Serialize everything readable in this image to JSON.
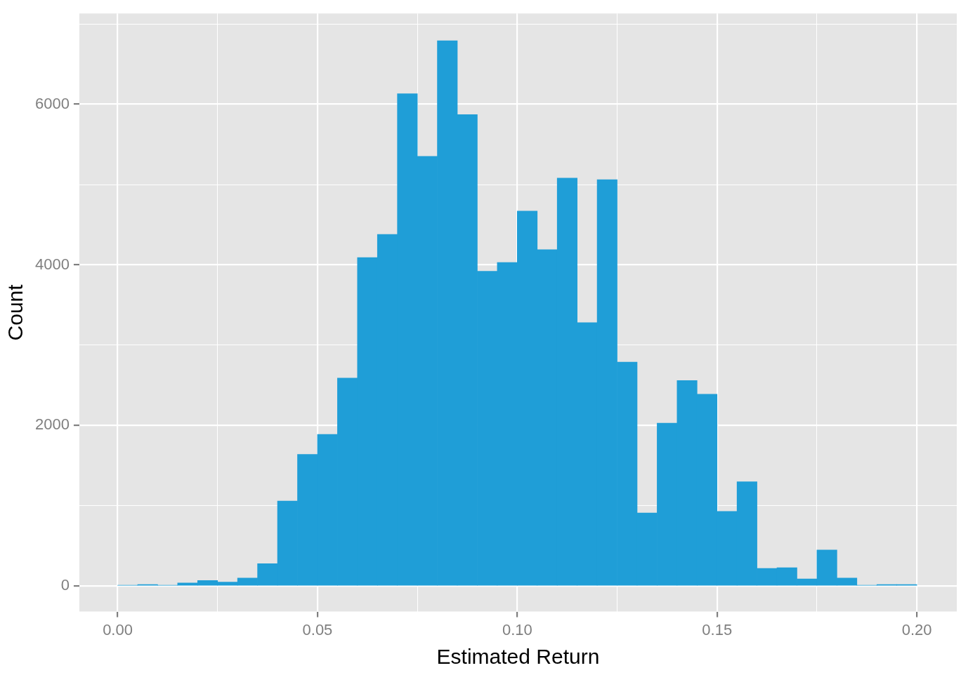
{
  "chart_data": {
    "type": "histogram",
    "xlabel": "Estimated Return",
    "ylabel": "Count",
    "color": "#1f9ed7",
    "bins": [
      0,
      0.005,
      0.01,
      0.015,
      0.02,
      0.025,
      0.03,
      0.035,
      0.04,
      0.045,
      0.05,
      0.055,
      0.06,
      0.065,
      0.07,
      0.075,
      0.08,
      0.085,
      0.09,
      0.095,
      0.1,
      0.105,
      0.11,
      0.115,
      0.12,
      0.125,
      0.13,
      0.135,
      0.14,
      0.145,
      0.15,
      0.155,
      0.16,
      0.165,
      0.17,
      0.175,
      0.18,
      0.185,
      0.19,
      0.195,
      0.2
    ],
    "values": [
      10,
      20,
      10,
      40,
      70,
      50,
      100,
      280,
      1060,
      1640,
      1890,
      2590,
      4090,
      4380,
      6130,
      5350,
      6790,
      5870,
      3920,
      4030,
      4670,
      4190,
      5080,
      3280,
      5060,
      2790,
      910,
      2030,
      2560,
      2390,
      930,
      1300,
      220,
      230,
      90,
      450,
      100,
      10,
      20,
      20
    ],
    "xlim": [
      -0.0096,
      0.21
    ],
    "xticks": [
      {
        "value": 0,
        "label": "0.00"
      },
      {
        "value": 0.025,
        "label": null
      },
      {
        "value": 0.05,
        "label": "0.05"
      },
      {
        "value": 0.075,
        "label": null
      },
      {
        "value": 0.1,
        "label": "0.10"
      },
      {
        "value": 0.125,
        "label": null
      },
      {
        "value": 0.15,
        "label": "0.15"
      },
      {
        "value": 0.175,
        "label": null
      },
      {
        "value": 0.2,
        "label": "0.20"
      }
    ],
    "ylim": [
      -317,
      7130
    ],
    "yticks": [
      0,
      {
        "value": 1000,
        "label": null
      },
      2000,
      {
        "value": 3000,
        "label": null
      },
      4000,
      {
        "value": 5000,
        "label": null
      },
      6000,
      {
        "value": 7000,
        "label": null
      }
    ],
    "grid": true
  }
}
